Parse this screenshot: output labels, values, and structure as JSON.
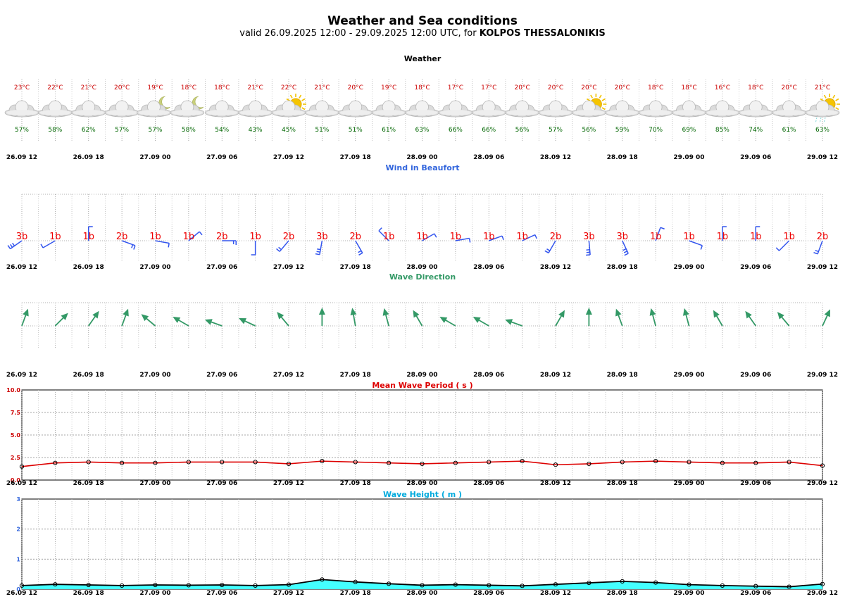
{
  "header": {
    "title": "Weather and Sea conditions",
    "subtitle_prefix": "valid 26.09.2025 12:00 - 29.09.2025 12:00 UTC, for ",
    "location": "KOLPOS THESSALONIKIS"
  },
  "colors": {
    "temperature": "#cc0000",
    "humidity": "#006600",
    "wind_title": "#3366dd",
    "wind_barb": "#3355ee",
    "beaufort_label": "#ee0000",
    "wave_dir_title": "#339966",
    "wave_arrow": "#339966",
    "period_title": "#dd0000",
    "period_line": "#dd0000",
    "period_axis": "#cc0000",
    "height_title": "#00aadd",
    "height_fill": "#44ffff",
    "height_axis": "#3366dd"
  },
  "time_axis_labels": [
    "26.09 12",
    "26.09 18",
    "27.09 00",
    "27.09 06",
    "27.09 12",
    "27.09 18",
    "28.09 00",
    "28.09 06",
    "28.09 12",
    "28.09 18",
    "29.09 00",
    "29.09 06",
    "29.09 12"
  ],
  "weather": {
    "title": "Weather",
    "temperatures": [
      "23°C",
      "22°C",
      "21°C",
      "20°C",
      "19°C",
      "18°C",
      "18°C",
      "21°C",
      "22°C",
      "21°C",
      "20°C",
      "19°C",
      "18°C",
      "17°C",
      "17°C",
      "20°C",
      "20°C",
      "20°C",
      "20°C",
      "18°C",
      "18°C",
      "16°C",
      "18°C",
      "20°C",
      "21°C"
    ],
    "humidity": [
      "57%",
      "58%",
      "62%",
      "57%",
      "57%",
      "58%",
      "54%",
      "43%",
      "45%",
      "51%",
      "51%",
      "61%",
      "63%",
      "66%",
      "66%",
      "56%",
      "57%",
      "56%",
      "59%",
      "70%",
      "69%",
      "85%",
      "74%",
      "61%",
      "63%"
    ],
    "icons": [
      "cloud-icon",
      "cloud-icon",
      "cloud-icon",
      "cloud-icon",
      "cloud-moon-icon",
      "cloud-moon-icon",
      "cloud-icon",
      "cloud-icon",
      "sun-cloud-icon",
      "cloud-icon",
      "cloud-icon",
      "cloud-icon",
      "cloud-icon",
      "cloud-icon",
      "cloud-icon",
      "cloud-icon",
      "cloud-icon",
      "sun-cloud-icon",
      "cloud-icon",
      "cloud-icon",
      "cloud-icon",
      "cloud-icon",
      "cloud-icon",
      "cloud-icon",
      "sun-rain-cloud-icon"
    ]
  },
  "wind": {
    "title": "Wind in Beaufort",
    "beaufort": [
      "3b",
      "1b",
      "1b",
      "2b",
      "1b",
      "1b",
      "2b",
      "1b",
      "2b",
      "3b",
      "2b",
      "1b",
      "1b",
      "1b",
      "1b",
      "1b",
      "2b",
      "3b",
      "3b",
      "1b",
      "1b",
      "1b",
      "1b",
      "1b",
      "2b"
    ],
    "direction_deg": [
      235,
      240,
      0,
      110,
      100,
      50,
      90,
      180,
      220,
      190,
      150,
      315,
      60,
      80,
      70,
      65,
      210,
      175,
      155,
      20,
      110,
      0,
      0,
      225,
      200
    ]
  },
  "wave_direction": {
    "title": "Wave Direction",
    "direction_deg": [
      20,
      45,
      35,
      20,
      310,
      300,
      290,
      295,
      320,
      0,
      350,
      345,
      330,
      300,
      300,
      290,
      30,
      0,
      340,
      345,
      345,
      330,
      325,
      320,
      25
    ]
  },
  "chart_data": [
    {
      "type": "line",
      "title": "Mean Wave Period ( s )",
      "ylim": [
        0,
        10
      ],
      "yticks": [
        "0.0",
        "2.5",
        "5.0",
        "7.5",
        "10.0"
      ],
      "x": [
        "26.09 12",
        "26.09 15",
        "26.09 18",
        "26.09 21",
        "27.09 00",
        "27.09 03",
        "27.09 06",
        "27.09 09",
        "27.09 12",
        "27.09 15",
        "27.09 18",
        "27.09 21",
        "28.09 00",
        "28.09 03",
        "28.09 06",
        "28.09 09",
        "28.09 12",
        "28.09 15",
        "28.09 18",
        "28.09 21",
        "29.09 00",
        "29.09 03",
        "29.09 06",
        "29.09 09",
        "29.09 12"
      ],
      "values": [
        1.5,
        1.9,
        2.0,
        1.9,
        1.9,
        2.0,
        2.0,
        2.0,
        1.8,
        2.1,
        2.0,
        1.9,
        1.8,
        1.9,
        2.0,
        2.1,
        1.7,
        1.8,
        2.0,
        2.1,
        2.0,
        1.9,
        1.9,
        2.0,
        1.6
      ],
      "grid": true
    },
    {
      "type": "area",
      "title": "Wave Height ( m )",
      "ylim": [
        0,
        3
      ],
      "yticks": [
        "0",
        "1",
        "2",
        "3"
      ],
      "x": [
        "26.09 12",
        "26.09 15",
        "26.09 18",
        "26.09 21",
        "27.09 00",
        "27.09 03",
        "27.09 06",
        "27.09 09",
        "27.09 12",
        "27.09 15",
        "27.09 18",
        "27.09 21",
        "28.09 00",
        "28.09 03",
        "28.09 06",
        "28.09 09",
        "28.09 12",
        "28.09 15",
        "28.09 18",
        "28.09 21",
        "29.09 00",
        "29.09 03",
        "29.09 06",
        "29.09 09",
        "29.09 12"
      ],
      "values": [
        0.12,
        0.16,
        0.14,
        0.12,
        0.14,
        0.13,
        0.14,
        0.12,
        0.15,
        0.32,
        0.24,
        0.18,
        0.13,
        0.15,
        0.13,
        0.11,
        0.16,
        0.21,
        0.26,
        0.22,
        0.15,
        0.12,
        0.1,
        0.08,
        0.17
      ],
      "grid": true
    }
  ]
}
